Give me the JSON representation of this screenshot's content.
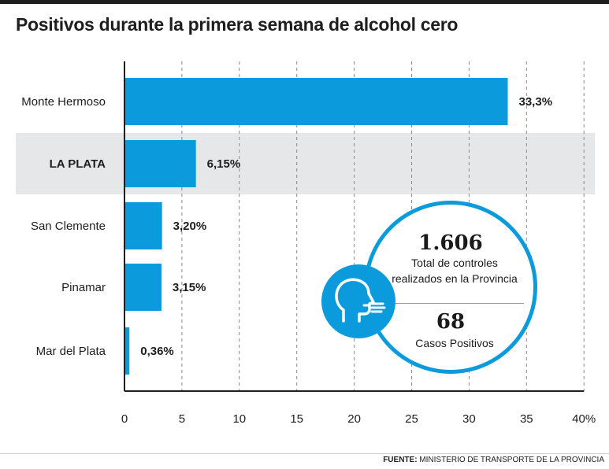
{
  "title": "Positivos durante la primera semana de alcohol cero",
  "source": {
    "prefix": "FUENTE:",
    "text": "MINISTERIO DE TRANSPORTE DE LA PROVINCIA"
  },
  "colors": {
    "bar": "#0b9bdc",
    "highlight_band": "#e6e7e8",
    "text": "#1e1e1e"
  },
  "stats": {
    "total_number": "1.606",
    "total_label": "Total de controles realizados en la Provincia",
    "positive_number": "68",
    "positive_label": "Casos Positivos",
    "icon": "breath-test-face-icon"
  },
  "chart_data": {
    "type": "bar",
    "orientation": "horizontal",
    "title": "Positivos durante la primera semana de alcohol cero",
    "categories": [
      "Monte Hermoso",
      "LA PLATA",
      "San Clemente",
      "Pinamar",
      "Mar del Plata"
    ],
    "values": [
      33.3,
      6.15,
      3.2,
      3.15,
      0.36
    ],
    "value_labels": [
      "33,3%",
      "6,15%",
      "3,20%",
      "3,15%",
      "0,36%"
    ],
    "highlighted_category": "LA PLATA",
    "xlim": [
      0,
      40
    ],
    "x_ticks": [
      0,
      5,
      10,
      15,
      20,
      25,
      30,
      35,
      40
    ],
    "x_tick_labels": [
      "0",
      "5",
      "10",
      "15",
      "20",
      "25",
      "30",
      "35",
      "40%"
    ],
    "grid": "vertical-dashed",
    "xlabel": "",
    "ylabel": ""
  }
}
